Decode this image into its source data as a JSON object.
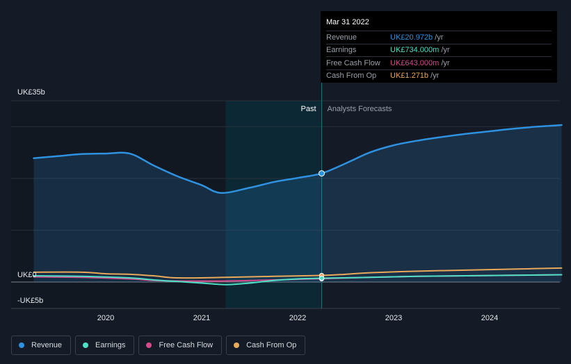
{
  "chart_data": {
    "type": "line",
    "currency_prefix": "UK£",
    "y_ticks": [
      {
        "value": 35,
        "label": "UK£35b"
      },
      {
        "value": 0,
        "label": "UK£0"
      },
      {
        "value": -5,
        "label": "-UK£5b"
      }
    ],
    "ylim": [
      -5,
      35
    ],
    "xlim": [
      2019.2,
      2024.75
    ],
    "x_ticks": [
      {
        "value": 2020,
        "label": "2020"
      },
      {
        "value": 2021,
        "label": "2021"
      },
      {
        "value": 2022,
        "label": "2022"
      },
      {
        "value": 2023,
        "label": "2023"
      },
      {
        "value": 2024,
        "label": "2024"
      }
    ],
    "grid": true,
    "past_label": "Past",
    "forecast_label": "Analysts Forecasts",
    "past_start": 2021.25,
    "divider_x": 2022.25,
    "series": [
      {
        "name": "Revenue",
        "color": "#2e92e0",
        "points": [
          [
            2019.25,
            23.9
          ],
          [
            2019.5,
            24.3
          ],
          [
            2019.75,
            24.7
          ],
          [
            2020.0,
            24.8
          ],
          [
            2020.25,
            24.8
          ],
          [
            2020.5,
            22.5
          ],
          [
            2020.75,
            20.4
          ],
          [
            2021.0,
            18.7
          ],
          [
            2021.2,
            17.2
          ],
          [
            2021.5,
            18.2
          ],
          [
            2021.75,
            19.3
          ],
          [
            2022.0,
            20.1
          ],
          [
            2022.25,
            20.972
          ],
          [
            2022.5,
            22.9
          ],
          [
            2022.75,
            25.0
          ],
          [
            2023.0,
            26.4
          ],
          [
            2023.25,
            27.3
          ],
          [
            2023.5,
            28.0
          ],
          [
            2023.75,
            28.6
          ],
          [
            2024.0,
            29.1
          ],
          [
            2024.25,
            29.6
          ],
          [
            2024.5,
            30.0
          ],
          [
            2024.75,
            30.3
          ]
        ]
      },
      {
        "name": "Earnings",
        "color": "#4fe0c8",
        "points": [
          [
            2019.25,
            1.2
          ],
          [
            2019.75,
            1.1
          ],
          [
            2020.25,
            0.8
          ],
          [
            2020.5,
            0.4
          ],
          [
            2020.75,
            0.1
          ],
          [
            2021.0,
            -0.2
          ],
          [
            2021.25,
            -0.5
          ],
          [
            2021.5,
            -0.2
          ],
          [
            2021.75,
            0.3
          ],
          [
            2022.0,
            0.6
          ],
          [
            2022.25,
            0.734
          ],
          [
            2022.75,
            0.9
          ],
          [
            2023.25,
            1.1
          ],
          [
            2023.75,
            1.2
          ],
          [
            2024.25,
            1.3
          ],
          [
            2024.75,
            1.4
          ]
        ]
      },
      {
        "name": "Free Cash Flow",
        "color": "#d64a8c",
        "points": [
          [
            2019.25,
            1.0
          ],
          [
            2019.75,
            0.9
          ],
          [
            2020.25,
            0.6
          ],
          [
            2020.5,
            0.3
          ],
          [
            2020.75,
            0.2
          ],
          [
            2021.25,
            0.2
          ],
          [
            2021.75,
            0.4
          ],
          [
            2022.25,
            0.643
          ],
          [
            2022.75,
            0.9
          ],
          [
            2023.25,
            1.1
          ],
          [
            2023.75,
            1.2
          ],
          [
            2024.25,
            1.3
          ],
          [
            2024.75,
            1.4
          ]
        ]
      },
      {
        "name": "Cash From Op",
        "color": "#e8a95a",
        "points": [
          [
            2019.25,
            1.9
          ],
          [
            2019.75,
            1.9
          ],
          [
            2020.0,
            1.6
          ],
          [
            2020.25,
            1.5
          ],
          [
            2020.5,
            1.2
          ],
          [
            2020.75,
            0.8
          ],
          [
            2021.25,
            0.9
          ],
          [
            2021.75,
            1.1
          ],
          [
            2022.25,
            1.271
          ],
          [
            2022.5,
            1.5
          ],
          [
            2022.75,
            1.8
          ],
          [
            2023.25,
            2.1
          ],
          [
            2023.75,
            2.3
          ],
          [
            2024.25,
            2.5
          ],
          [
            2024.75,
            2.7
          ]
        ]
      }
    ],
    "tooltip": {
      "date": "Mar 31 2022",
      "rows": [
        {
          "label": "Revenue",
          "value": "UK£20.972b",
          "unit": "/yr",
          "color": "#2e92e0"
        },
        {
          "label": "Earnings",
          "value": "UK£734.000m",
          "unit": "/yr",
          "color": "#4fe0c8"
        },
        {
          "label": "Free Cash Flow",
          "value": "UK£643.000m",
          "unit": "/yr",
          "color": "#d64a8c"
        },
        {
          "label": "Cash From Op",
          "value": "UK£1.271b",
          "unit": "/yr",
          "color": "#e8a95a"
        }
      ]
    }
  },
  "legend": [
    {
      "label": "Revenue",
      "color": "#2e92e0"
    },
    {
      "label": "Earnings",
      "color": "#4fe0c8"
    },
    {
      "label": "Free Cash Flow",
      "color": "#d64a8c"
    },
    {
      "label": "Cash From Op",
      "color": "#e8a95a"
    }
  ]
}
